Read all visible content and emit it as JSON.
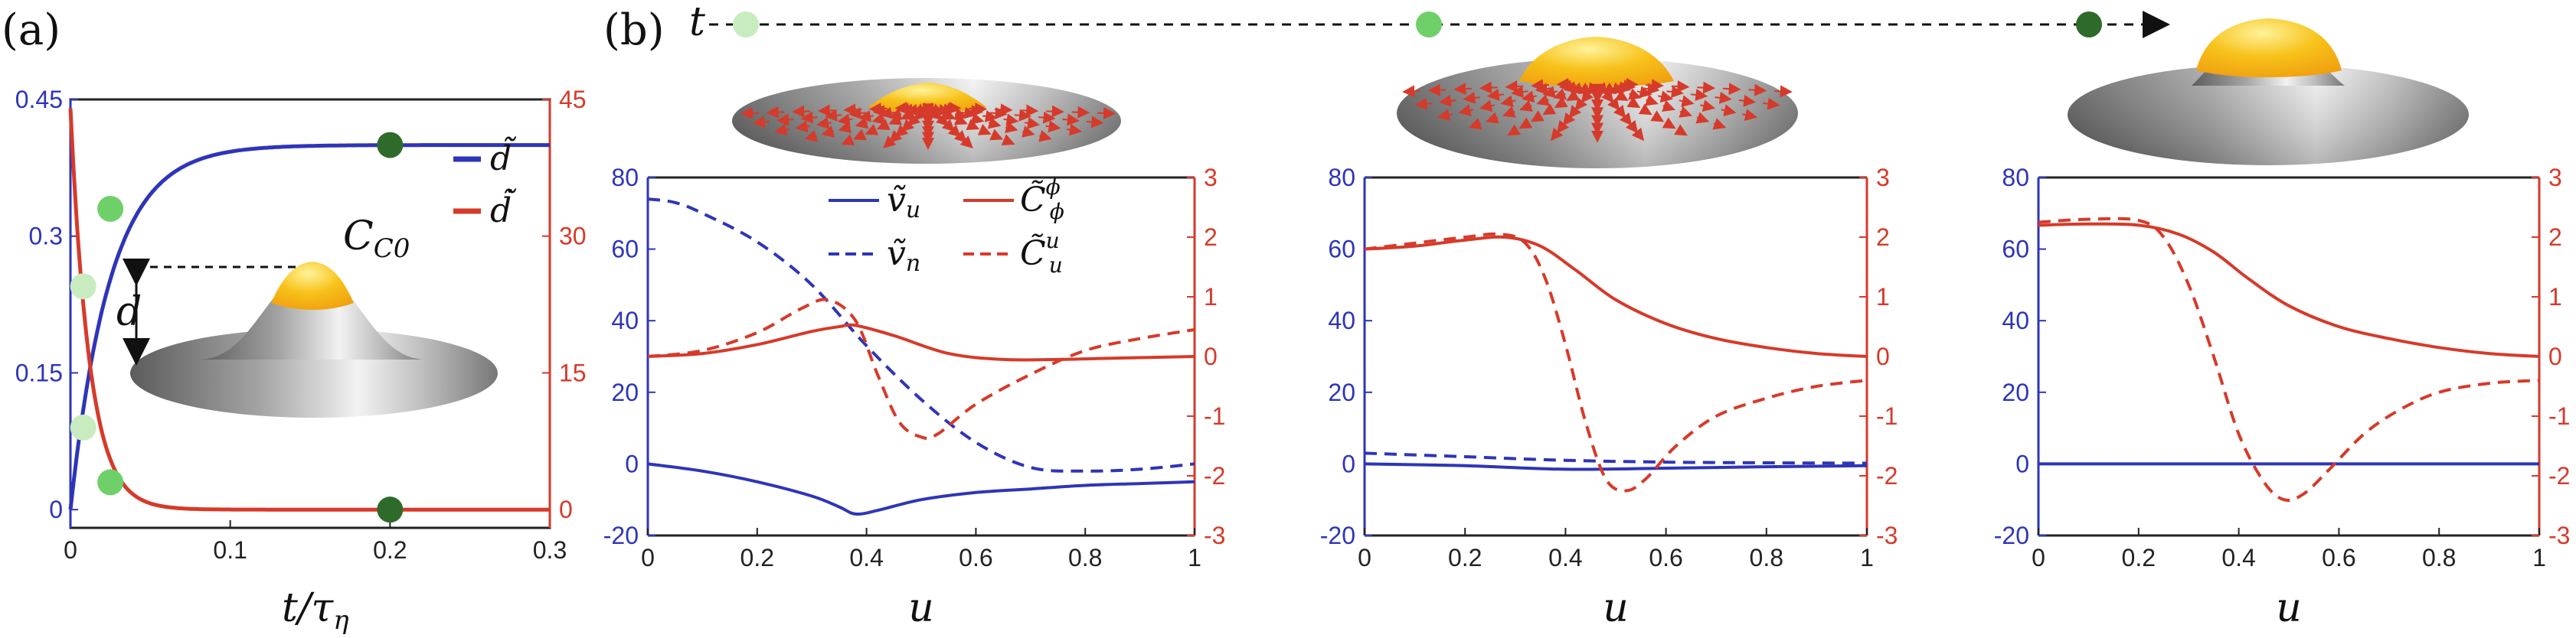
{
  "panel_labels": {
    "a": "(a)",
    "b": "(b)"
  },
  "time_arrow_label": "t",
  "colors": {
    "blue": "#2e35b8",
    "red": "#d63a2a",
    "dot_light": "#c8ecc0",
    "dot_mid": "#6fd06a",
    "dot_dark": "#2e6b2b",
    "cap": "#f7c21a",
    "surface": "#9a9a9a"
  },
  "chart_data": [
    {
      "panel": "(a)",
      "type": "line",
      "xlabel": "t/τη",
      "xlim": [
        0,
        0.3
      ],
      "xticks": [
        "0",
        "0.1",
        "0.2",
        "0.3"
      ],
      "ylim_left": [
        -0.02,
        0.45
      ],
      "ylim_right": [
        -2,
        45
      ],
      "yticks_left": [
        "0",
        "0.15",
        "0.3",
        "0.45"
      ],
      "yticks_right": [
        "0",
        "15",
        "30",
        "45"
      ],
      "series": [
        {
          "name": "d̃",
          "axis": "left",
          "color": "#2e35b8",
          "curve": "1 - exp(-t/0.025)",
          "plateau": 0.4
        },
        {
          "name": "d̃̇",
          "axis": "right",
          "color": "#d63a2a",
          "curve": "exp(-t/0.012)",
          "start": 44
        }
      ],
      "markers": [
        {
          "x": 0.008,
          "y": 0.245,
          "axis": "left",
          "shade": "light"
        },
        {
          "x": 0.025,
          "y": 0.33,
          "axis": "left",
          "shade": "mid"
        },
        {
          "x": 0.2,
          "y": 0.4,
          "axis": "left",
          "shade": "dark"
        },
        {
          "x": 0.008,
          "y": 9,
          "axis": "right",
          "shade": "light"
        },
        {
          "x": 0.025,
          "y": 3,
          "axis": "right",
          "shade": "mid"
        },
        {
          "x": 0.2,
          "y": 0,
          "axis": "right",
          "shade": "dark"
        }
      ],
      "annotations": {
        "cap_label": "C0",
        "height_label": "d"
      }
    },
    {
      "panel": "(b)-1",
      "type": "line",
      "xlabel": "u",
      "xlim": [
        0,
        1
      ],
      "xticks": [
        "0",
        "0.2",
        "0.4",
        "0.6",
        "0.8",
        "1"
      ],
      "ylim_left": [
        -20,
        80
      ],
      "ylim_right": [
        -3,
        3
      ],
      "yticks_left": [
        "-20",
        "0",
        "20",
        "40",
        "60",
        "80"
      ],
      "yticks_right": [
        "-3",
        "-2",
        "-1",
        "0",
        "1",
        "2",
        "3"
      ],
      "series": [
        {
          "name": "ṽu",
          "axis": "left",
          "style": "solid",
          "color": "#2e35b8",
          "x": [
            0,
            0.1,
            0.2,
            0.3,
            0.35,
            0.38,
            0.42,
            0.5,
            0.6,
            0.7,
            0.8,
            0.9,
            1
          ],
          "y": [
            0,
            -2,
            -5,
            -9,
            -12,
            -14,
            -13,
            -10,
            -8,
            -7,
            -6,
            -5.5,
            -5
          ]
        },
        {
          "name": "ṽn",
          "axis": "left",
          "style": "dashed",
          "color": "#2e35b8",
          "x": [
            0,
            0.05,
            0.1,
            0.2,
            0.3,
            0.4,
            0.5,
            0.6,
            0.7,
            0.8,
            0.9,
            1
          ],
          "y": [
            74,
            73,
            70,
            62,
            50,
            33,
            18,
            6,
            -1,
            -2,
            -1.5,
            0
          ]
        },
        {
          "name": "C̃ϕϕ",
          "axis": "right",
          "style": "solid",
          "color": "#d63a2a",
          "x": [
            0,
            0.1,
            0.2,
            0.3,
            0.35,
            0.38,
            0.45,
            0.55,
            0.65,
            0.75,
            0.85,
            1
          ],
          "y": [
            0,
            0.05,
            0.2,
            0.42,
            0.5,
            0.52,
            0.35,
            0.05,
            -0.05,
            -0.05,
            -0.03,
            0
          ]
        },
        {
          "name": "C̃uu",
          "axis": "right",
          "style": "dashed",
          "color": "#d63a2a",
          "x": [
            0,
            0.1,
            0.2,
            0.28,
            0.33,
            0.38,
            0.42,
            0.46,
            0.5,
            0.53,
            0.6,
            0.7,
            0.8,
            0.9,
            1
          ],
          "y": [
            0,
            0.1,
            0.4,
            0.8,
            0.95,
            0.6,
            -0.3,
            -1.1,
            -1.35,
            -1.3,
            -0.8,
            -0.3,
            0.1,
            0.3,
            0.45
          ]
        }
      ],
      "legend": [
        "ṽu",
        "C̃ϕϕ",
        "ṽn",
        "C̃uu"
      ]
    },
    {
      "panel": "(b)-2",
      "type": "line",
      "xlabel": "u",
      "xlim": [
        0,
        1
      ],
      "xticks": [
        "0",
        "0.2",
        "0.4",
        "0.6",
        "0.8",
        "1"
      ],
      "ylim_left": [
        -20,
        80
      ],
      "ylim_right": [
        -3,
        3
      ],
      "yticks_left": [
        "-20",
        "0",
        "20",
        "40",
        "60",
        "80"
      ],
      "yticks_right": [
        "-3",
        "-2",
        "-1",
        "0",
        "1",
        "2",
        "3"
      ],
      "series": [
        {
          "name": "ṽu",
          "axis": "left",
          "style": "solid",
          "color": "#2e35b8",
          "x": [
            0,
            0.2,
            0.4,
            0.6,
            0.8,
            1
          ],
          "y": [
            0,
            -0.5,
            -1.5,
            -1.2,
            -0.8,
            -0.5
          ]
        },
        {
          "name": "ṽn",
          "axis": "left",
          "style": "dashed",
          "color": "#2e35b8",
          "x": [
            0,
            0.2,
            0.4,
            0.6,
            0.8,
            1
          ],
          "y": [
            3,
            2,
            1,
            0.5,
            0.3,
            0.2
          ]
        },
        {
          "name": "C̃ϕϕ",
          "axis": "right",
          "style": "solid",
          "color": "#d63a2a",
          "x": [
            0,
            0.1,
            0.2,
            0.28,
            0.35,
            0.42,
            0.5,
            0.6,
            0.7,
            0.8,
            0.9,
            1
          ],
          "y": [
            1.8,
            1.85,
            1.95,
            2.0,
            1.85,
            1.45,
            0.95,
            0.55,
            0.3,
            0.15,
            0.05,
            0
          ]
        },
        {
          "name": "C̃uu",
          "axis": "right",
          "style": "dashed",
          "color": "#d63a2a",
          "x": [
            0,
            0.1,
            0.2,
            0.27,
            0.32,
            0.36,
            0.4,
            0.44,
            0.48,
            0.52,
            0.56,
            0.62,
            0.7,
            0.8,
            0.9,
            1
          ],
          "y": [
            1.8,
            1.9,
            2.0,
            2.05,
            1.9,
            1.3,
            0.2,
            -1.1,
            -2.05,
            -2.25,
            -2.05,
            -1.5,
            -1.0,
            -0.7,
            -0.5,
            -0.4
          ]
        }
      ]
    },
    {
      "panel": "(b)-3",
      "type": "line",
      "xlabel": "u",
      "xlim": [
        0,
        1
      ],
      "xticks": [
        "0",
        "0.2",
        "0.4",
        "0.6",
        "0.8",
        "1"
      ],
      "ylim_left": [
        -20,
        80
      ],
      "ylim_right": [
        -3,
        3
      ],
      "yticks_left": [
        "-20",
        "0",
        "20",
        "40",
        "60",
        "80"
      ],
      "yticks_right": [
        "-3",
        "-2",
        "-1",
        "0",
        "1",
        "2",
        "3"
      ],
      "series": [
        {
          "name": "ṽu",
          "axis": "left",
          "style": "solid",
          "color": "#2e35b8",
          "x": [
            0,
            1
          ],
          "y": [
            0,
            0
          ]
        },
        {
          "name": "C̃ϕϕ",
          "axis": "right",
          "style": "solid",
          "color": "#d63a2a",
          "x": [
            0,
            0.1,
            0.2,
            0.28,
            0.35,
            0.42,
            0.5,
            0.6,
            0.7,
            0.8,
            0.9,
            1
          ],
          "y": [
            2.2,
            2.22,
            2.2,
            2.05,
            1.75,
            1.3,
            0.85,
            0.5,
            0.3,
            0.15,
            0.05,
            0
          ]
        },
        {
          "name": "C̃uu",
          "axis": "right",
          "style": "dashed",
          "color": "#d63a2a",
          "x": [
            0,
            0.1,
            0.2,
            0.25,
            0.3,
            0.35,
            0.4,
            0.45,
            0.49,
            0.53,
            0.58,
            0.65,
            0.72,
            0.8,
            0.9,
            1
          ],
          "y": [
            2.25,
            2.3,
            2.28,
            2.0,
            1.2,
            0.0,
            -1.3,
            -2.1,
            -2.4,
            -2.3,
            -1.9,
            -1.3,
            -0.9,
            -0.6,
            -0.45,
            -0.4
          ]
        }
      ]
    }
  ]
}
